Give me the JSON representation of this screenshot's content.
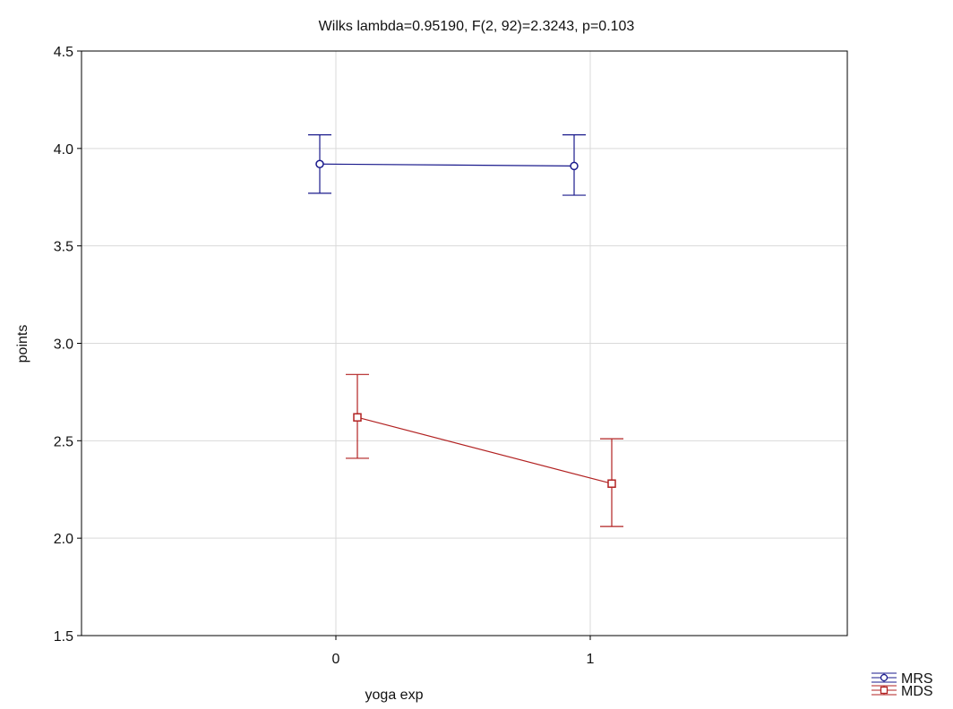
{
  "chart_data": {
    "type": "line",
    "title": "Wilks lambda=0.95190, F(2, 92)=2.3243, p=0.103",
    "xlabel": "yoga exp",
    "ylabel": "points",
    "categories": [
      "0",
      "1"
    ],
    "ylim": [
      1.5,
      4.5
    ],
    "yticks": [
      "1.5",
      "2.0",
      "2.5",
      "3.0",
      "3.5",
      "4.0",
      "4.5"
    ],
    "grid": true,
    "legend_position": "bottom-right",
    "series": [
      {
        "name": "MRS",
        "color": "#1a1a8c",
        "marker": "circle",
        "values": [
          3.92,
          3.91
        ],
        "lower": [
          3.77,
          3.76
        ],
        "upper": [
          4.07,
          4.07
        ]
      },
      {
        "name": "MDS",
        "color": "#b22222",
        "marker": "square",
        "values": [
          2.62,
          2.28
        ],
        "lower": [
          2.41,
          2.06
        ],
        "upper": [
          2.84,
          2.51
        ]
      }
    ]
  }
}
